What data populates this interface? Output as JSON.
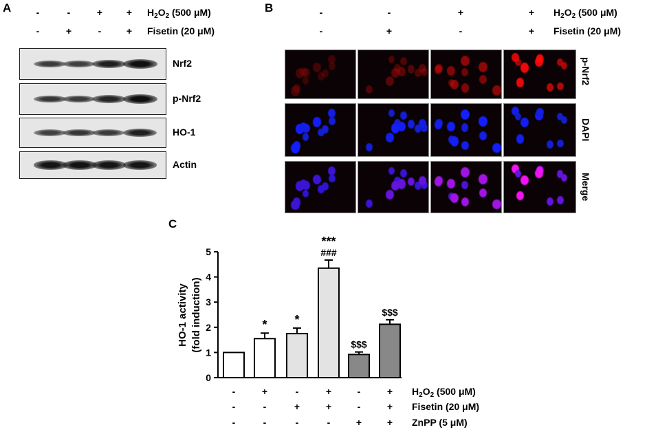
{
  "panelA": {
    "letter": "A",
    "header_rows": [
      {
        "signs": [
          "-",
          "-",
          "+",
          "+"
        ],
        "label_main": "H",
        "label_sub": "2",
        "label_mid": "O",
        "label_sub2": "2",
        "label_tail": " (500 μM)"
      },
      {
        "signs": [
          "-",
          "+",
          "-",
          "+"
        ],
        "label_text": "Fisetin (20 μM)"
      }
    ],
    "blots": [
      {
        "label": "Nrf2",
        "intensities": [
          0.55,
          0.5,
          0.8,
          0.95
        ]
      },
      {
        "label": "p-Nrf2",
        "intensities": [
          0.6,
          0.55,
          0.75,
          0.95
        ]
      },
      {
        "label": "HO-1",
        "intensities": [
          0.5,
          0.6,
          0.55,
          0.8
        ]
      },
      {
        "label": "Actin",
        "intensities": [
          0.9,
          0.92,
          0.9,
          0.9
        ]
      }
    ]
  },
  "panelB": {
    "letter": "B",
    "header_rows": [
      {
        "signs": [
          "-",
          "-",
          "+",
          "+"
        ],
        "label_main": "H",
        "label_sub": "2",
        "label_mid": "O",
        "label_sub2": "2",
        "label_tail": " (500 μM)"
      },
      {
        "signs": [
          "-",
          "+",
          "-",
          "+"
        ],
        "label_text": "Fisetin (20 μM)"
      }
    ],
    "rows": [
      {
        "label": "p-Nrf2",
        "kind": "red",
        "levels": [
          0.25,
          0.4,
          0.6,
          1.0
        ]
      },
      {
        "label": "DAPI",
        "kind": "blue",
        "levels": [
          1,
          1,
          1,
          1
        ]
      },
      {
        "label": "Merge",
        "kind": "merge",
        "levels": [
          0.1,
          0.3,
          0.6,
          1.0
        ]
      }
    ]
  },
  "panelC": {
    "letter": "C",
    "chart_data": {
      "type": "bar",
      "ylabel_line1": "HO-1 activity",
      "ylabel_line2": "(fold induction)",
      "ylim": [
        0,
        5
      ],
      "yticks": [
        0,
        1,
        2,
        3,
        4,
        5
      ],
      "bars": [
        {
          "value": 1.0,
          "error": 0.0,
          "fill": "#ffffff",
          "annotation": ""
        },
        {
          "value": 1.55,
          "error": 0.22,
          "fill": "#ffffff",
          "annotation": "*"
        },
        {
          "value": 1.75,
          "error": 0.22,
          "fill": "#e3e3e3",
          "annotation": "*"
        },
        {
          "value": 4.35,
          "error": 0.32,
          "fill": "#e3e3e3",
          "annotation": "***\n###"
        },
        {
          "value": 0.92,
          "error": 0.1,
          "fill": "#888888",
          "annotation": "$$$"
        },
        {
          "value": 2.12,
          "error": 0.18,
          "fill": "#888888",
          "annotation": "$$$"
        }
      ],
      "conditions": [
        {
          "signs": [
            "-",
            "+",
            "-",
            "+",
            "-",
            "+"
          ],
          "label_main": "H",
          "label_sub": "2",
          "label_mid": "O",
          "label_sub2": "2",
          "label_tail": " (500 μM)"
        },
        {
          "signs": [
            "-",
            "-",
            "+",
            "+",
            "-",
            "+"
          ],
          "label_text": "Fisetin (20 μM)"
        },
        {
          "signs": [
            "-",
            "-",
            "-",
            "-",
            "+",
            "+"
          ],
          "label_text": "ZnPP (5 μM)"
        }
      ]
    }
  }
}
